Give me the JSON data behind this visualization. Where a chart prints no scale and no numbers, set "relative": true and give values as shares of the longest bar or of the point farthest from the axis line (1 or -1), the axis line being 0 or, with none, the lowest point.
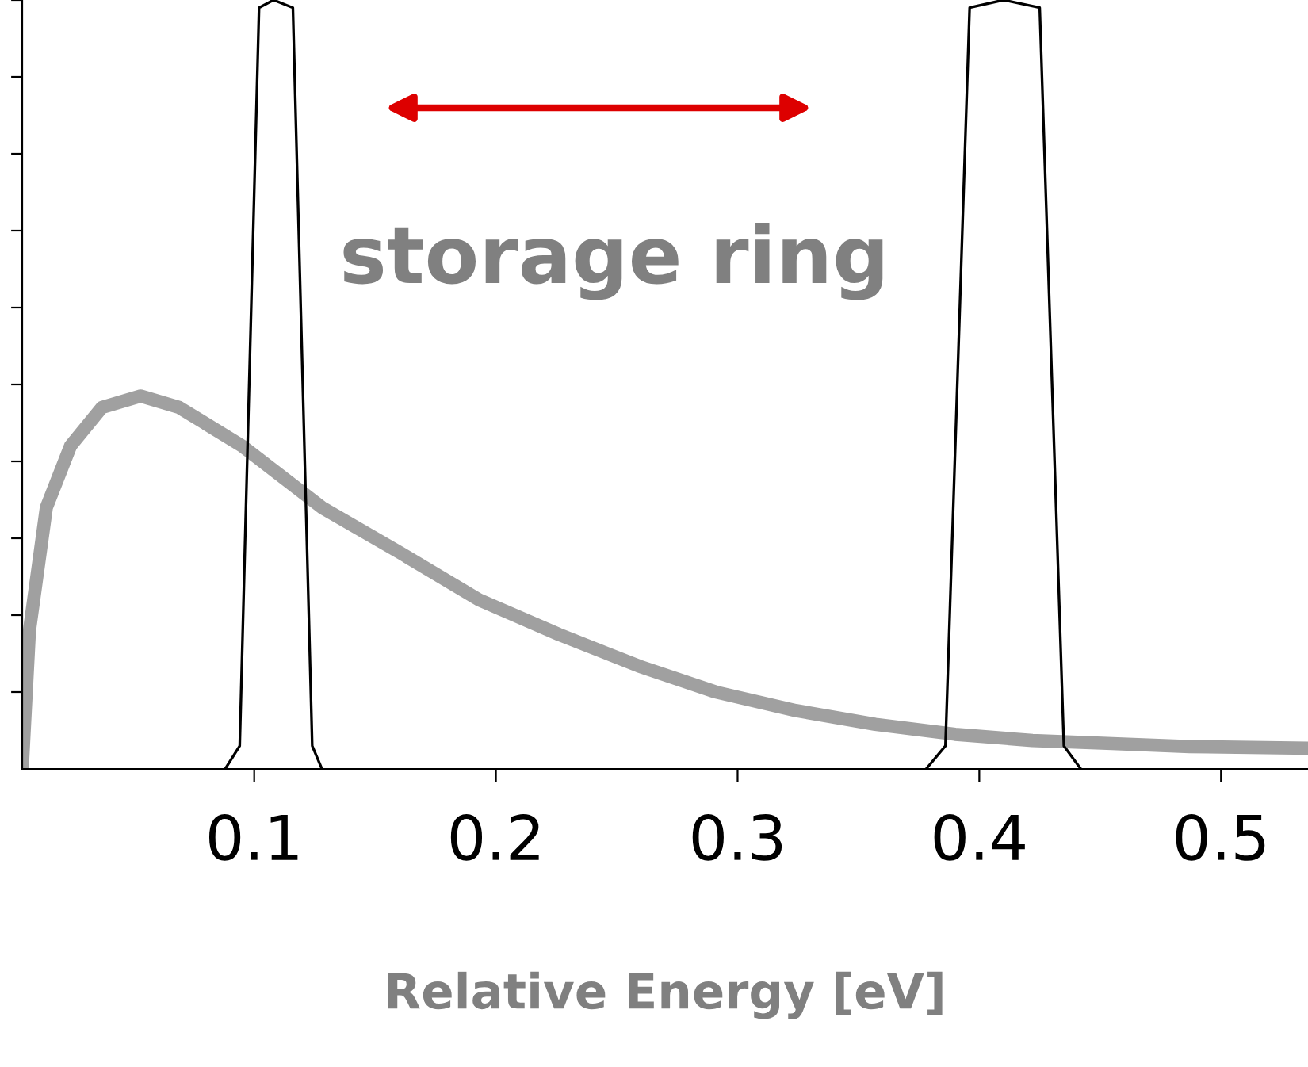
{
  "chart_data": {
    "type": "line",
    "relative": true,
    "xlabel": "Relative Energy [eV]",
    "xlim": [
      0.004,
      0.536
    ],
    "xticks": [
      0.1,
      0.2,
      0.3,
      0.4,
      0.5
    ],
    "tick_labels": "x",
    "grid": false,
    "legend": false,
    "marker": "none",
    "line_style": "solid",
    "annotations": [
      "storage ring"
    ],
    "series": [
      {
        "color": "#a0a0a0",
        "x": [
          0.004,
          0.007,
          0.014,
          0.024,
          0.037,
          0.053,
          0.069,
          0.095,
          0.128,
          0.161,
          0.193,
          0.226,
          0.259,
          0.291,
          0.324,
          0.357,
          0.39,
          0.422,
          0.455,
          0.487,
          0.536
        ],
        "values": [
          0,
          0.18,
          0.34,
          0.42,
          0.47,
          0.485,
          0.47,
          0.42,
          0.34,
          0.28,
          0.22,
          0.175,
          0.134,
          0.1,
          0.076,
          0.058,
          0.045,
          0.037,
          0.033,
          0.029,
          0.027
        ]
      },
      {
        "color": "#000000",
        "x": [
          0.088,
          0.094,
          0.102,
          0.108,
          0.116,
          0.124,
          0.128
        ],
        "values": [
          0,
          0.03,
          0.99,
          1,
          0.99,
          0.03,
          0
        ]
      },
      {
        "color": "#000000",
        "x": [
          0.378,
          0.386,
          0.396,
          0.41,
          0.425,
          0.435,
          0.442
        ],
        "values": [
          0,
          0.03,
          0.99,
          1,
          0.99,
          0.03,
          0
        ]
      }
    ]
  }
}
